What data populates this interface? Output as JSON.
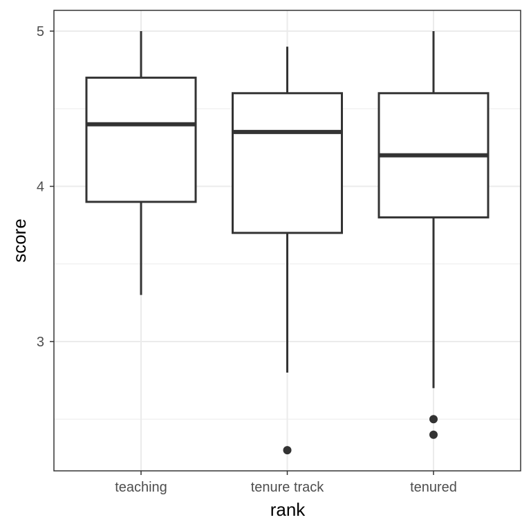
{
  "chart_data": {
    "type": "box",
    "xlabel": "rank",
    "ylabel": "score",
    "categories": [
      "teaching",
      "tenure track",
      "tenured"
    ],
    "y_ticks": [
      3,
      4,
      5
    ],
    "ylim": [
      2.2,
      5.15
    ],
    "grid": true,
    "boxes": [
      {
        "category": "teaching",
        "whisker_low": 3.3,
        "q1": 3.9,
        "median": 4.4,
        "q3": 4.7,
        "whisker_high": 5.0,
        "outliers": []
      },
      {
        "category": "tenure track",
        "whisker_low": 2.8,
        "q1": 3.7,
        "median": 4.35,
        "q3": 4.6,
        "whisker_high": 4.9,
        "outliers": [
          2.3
        ]
      },
      {
        "category": "tenured",
        "whisker_low": 2.7,
        "q1": 3.8,
        "median": 4.2,
        "q3": 4.6,
        "whisker_high": 5.0,
        "outliers": [
          2.5,
          2.4
        ]
      }
    ],
    "colors": {
      "box_stroke": "#333333",
      "box_fill": "#ffffff",
      "grid": "#ebebeb",
      "panel_border": "#333333"
    }
  }
}
